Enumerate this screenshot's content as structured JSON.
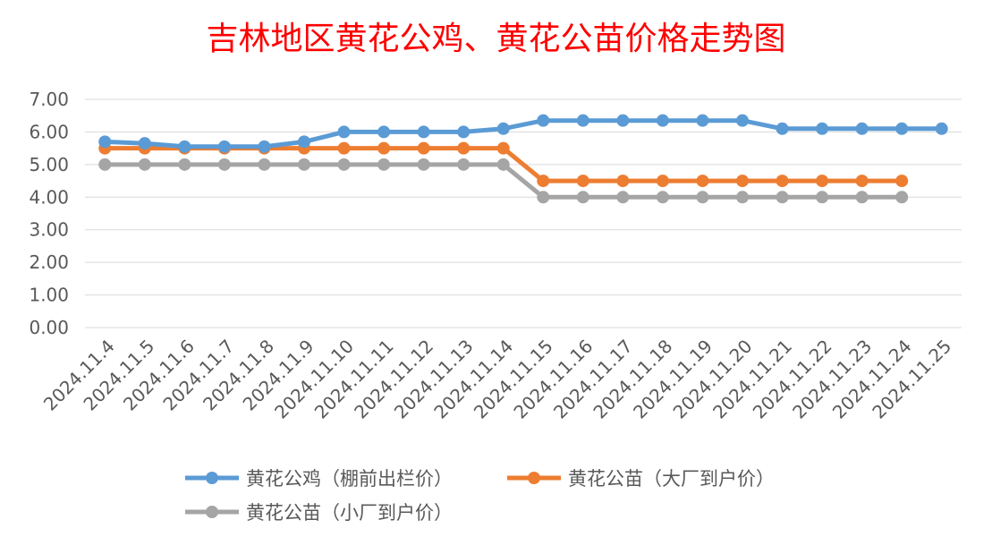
{
  "chart_data": {
    "type": "line",
    "title": "吉林地区黄花公鸡、黄花公苗价格走势图",
    "categories": [
      "2024.11.4",
      "2024.11.5",
      "2024.11.6",
      "2024.11.7",
      "2024.11.8",
      "2024.11.9",
      "2024.11.10",
      "2024.11.11",
      "2024.11.12",
      "2024.11.13",
      "2024.11.14",
      "2024.11.15",
      "2024.11.16",
      "2024.11.17",
      "2024.11.18",
      "2024.11.19",
      "2024.11.20",
      "2024.11.21",
      "2024.11.22",
      "2024.11.23",
      "2024.11.24",
      "2024.11.25"
    ],
    "y_ticks": [
      "0.00",
      "1.00",
      "2.00",
      "3.00",
      "4.00",
      "5.00",
      "6.00",
      "7.00"
    ],
    "ylim": [
      0,
      7
    ],
    "grid": true,
    "legend_position": "bottom",
    "series": [
      {
        "name": "黄花公鸡（棚前出栏价）",
        "color": "#5b9bd5",
        "values": [
          5.7,
          5.65,
          5.55,
          5.55,
          5.55,
          5.7,
          6.0,
          6.0,
          6.0,
          6.0,
          6.1,
          6.35,
          6.35,
          6.35,
          6.35,
          6.35,
          6.35,
          6.1,
          6.1,
          6.1,
          6.1,
          6.1
        ]
      },
      {
        "name": "黄花公苗（大厂到户价）",
        "color": "#ed7d31",
        "values": [
          5.5,
          5.5,
          5.5,
          5.5,
          5.5,
          5.5,
          5.5,
          5.5,
          5.5,
          5.5,
          5.5,
          4.5,
          4.5,
          4.5,
          4.5,
          4.5,
          4.5,
          4.5,
          4.5,
          4.5,
          4.5,
          null
        ]
      },
      {
        "name": "黄花公苗（小厂到户价）",
        "color": "#a5a5a5",
        "values": [
          5.0,
          5.0,
          5.0,
          5.0,
          5.0,
          5.0,
          5.0,
          5.0,
          5.0,
          5.0,
          5.0,
          4.0,
          4.0,
          4.0,
          4.0,
          4.0,
          4.0,
          4.0,
          4.0,
          4.0,
          4.0,
          null
        ]
      }
    ]
  }
}
